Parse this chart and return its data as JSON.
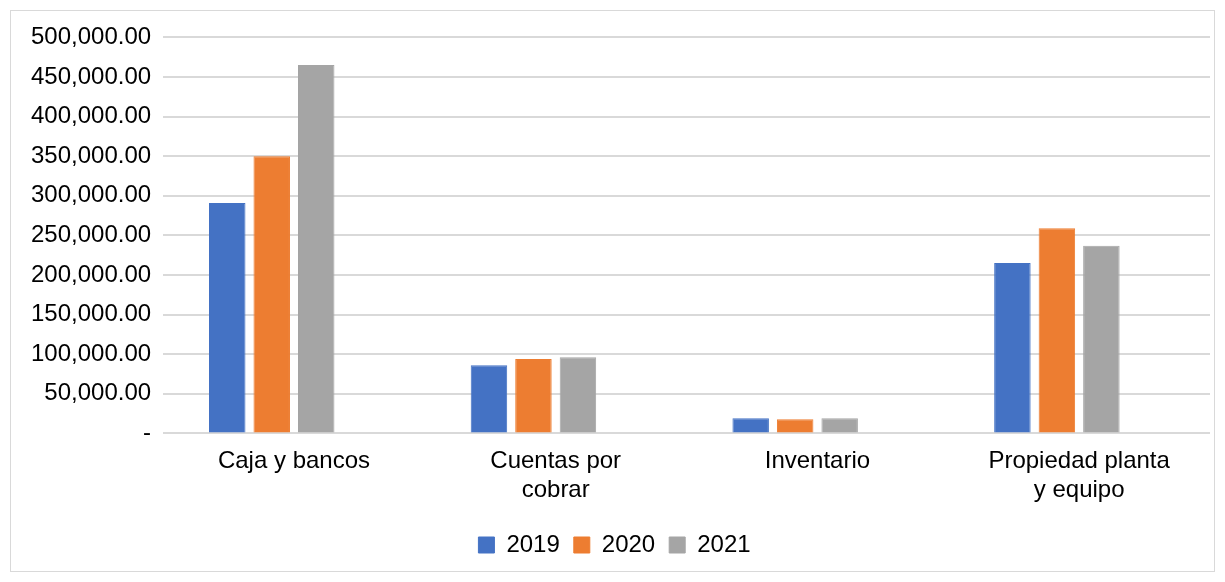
{
  "chart_data": {
    "type": "bar",
    "categories": [
      "Caja y bancos",
      "Cuentas por cobrar",
      "Inventario",
      "Propiedad planta y equipo"
    ],
    "series": [
      {
        "name": "2019",
        "color": "#4472c4",
        "values": [
          291000,
          86000,
          19000,
          215000
        ]
      },
      {
        "name": "2020",
        "color": "#ed7d31",
        "values": [
          350000,
          94000,
          18000,
          259000
        ]
      },
      {
        "name": "2021",
        "color": "#a5a5a5",
        "values": [
          465000,
          96000,
          19000,
          237000
        ]
      },
      {
        "color": "#70ad47",
        "values": [
          0,
          null,
          null,
          null
        ]
      }
    ],
    "ylim": [
      0,
      500000
    ],
    "yticks": [
      {
        "value": 0,
        "label": "-"
      },
      {
        "value": 50000,
        "label": "50,000.00"
      },
      {
        "value": 100000,
        "label": "100,000.00"
      },
      {
        "value": 150000,
        "label": "150,000.00"
      },
      {
        "value": 200000,
        "label": "200,000.00"
      },
      {
        "value": 250000,
        "label": "250,000.00"
      },
      {
        "value": 300000,
        "label": "300,000.00"
      },
      {
        "value": 350000,
        "label": "350,000.00"
      },
      {
        "value": 400000,
        "label": "400,000.00"
      },
      {
        "value": 450000,
        "label": "450,000.00"
      },
      {
        "value": 500000,
        "label": "500,000.00"
      }
    ],
    "grid": "y",
    "legend": "bottom"
  }
}
